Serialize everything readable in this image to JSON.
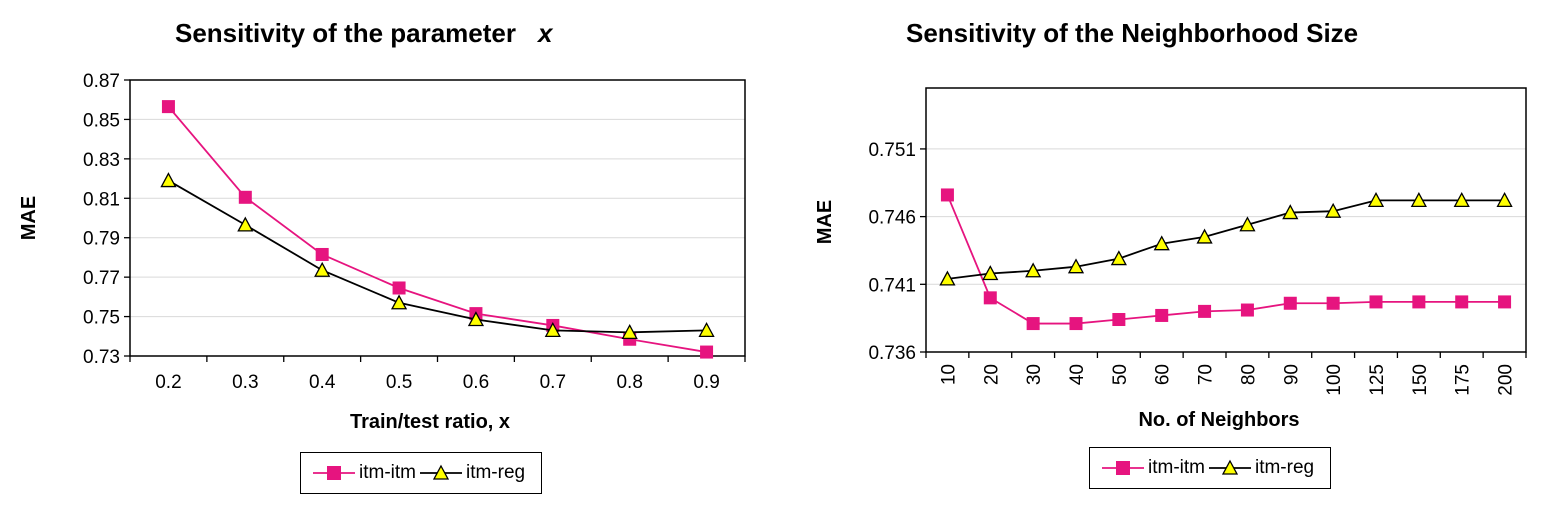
{
  "colors": {
    "itm_itm": "#e6147f",
    "itm_reg": "#000000",
    "triangle_fill": "#ffff00",
    "grid": "#d9d9d9"
  },
  "chart_data": [
    {
      "type": "line",
      "title": "Sensitivity of the parameter",
      "title_var": "x",
      "xlabel": "Train/test ratio, x",
      "ylabel": "MAE",
      "categories": [
        "0.2",
        "0.3",
        "0.4",
        "0.5",
        "0.6",
        "0.7",
        "0.8",
        "0.9"
      ],
      "ylim": [
        0.73,
        0.87
      ],
      "yticks": [
        "0.73",
        "0.75",
        "0.77",
        "0.79",
        "0.81",
        "0.83",
        "0.85",
        "0.87"
      ],
      "grid": true,
      "legend_position": "bottom",
      "series": [
        {
          "name": "itm-itm",
          "marker": "square",
          "values": [
            0.8565,
            0.8105,
            0.7815,
            0.7645,
            0.7515,
            0.7455,
            0.7385,
            0.732
          ]
        },
        {
          "name": "itm-reg",
          "marker": "triangle",
          "values": [
            0.819,
            0.7965,
            0.7735,
            0.757,
            0.7485,
            0.743,
            0.742,
            0.743
          ]
        }
      ]
    },
    {
      "type": "line",
      "title": "Sensitivity of the Neighborhood Size",
      "xlabel": "No. of Neighbors",
      "ylabel": "MAE",
      "categories": [
        "10",
        "20",
        "30",
        "40",
        "50",
        "60",
        "70",
        "80",
        "90",
        "100",
        "125",
        "150",
        "175",
        "200"
      ],
      "ylim": [
        0.736,
        0.7555
      ],
      "yticks": [
        "0.736",
        "0.741",
        "0.746",
        "0.751"
      ],
      "grid": true,
      "legend_position": "bottom",
      "series": [
        {
          "name": "itm-itm",
          "marker": "square",
          "values": [
            0.7476,
            0.74,
            0.7381,
            0.7381,
            0.7384,
            0.7387,
            0.739,
            0.7391,
            0.7396,
            0.7396,
            0.7397,
            0.7397,
            0.7397,
            0.7397
          ]
        },
        {
          "name": "itm-reg",
          "marker": "triangle",
          "values": [
            0.7414,
            0.7418,
            0.742,
            0.7423,
            0.7429,
            0.744,
            0.7445,
            0.7454,
            0.7463,
            0.7464,
            0.7472,
            0.7472,
            0.7472,
            0.7472
          ]
        }
      ]
    }
  ]
}
